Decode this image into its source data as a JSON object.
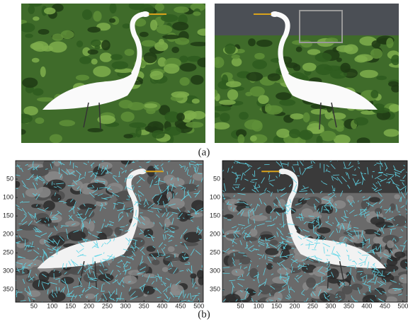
{
  "panels": [
    {
      "label": "(a)"
    },
    {
      "label": "(b)"
    }
  ],
  "chart_data": [
    {
      "type": "image",
      "xlim": [
        0,
        512
      ],
      "ylim": [
        0,
        384
      ],
      "xticks": [
        50,
        100,
        150,
        200,
        250,
        300,
        350,
        400,
        450,
        500
      ],
      "yticks": [
        50,
        100,
        150,
        200,
        250,
        300,
        350
      ]
    },
    {
      "type": "image",
      "xlim": [
        0,
        512
      ],
      "ylim": [
        0,
        384
      ],
      "xticks": [
        50,
        100,
        150,
        200,
        250,
        300,
        350,
        400,
        450,
        500
      ],
      "yticks": [
        50,
        100,
        150,
        200,
        250,
        300,
        350
      ]
    }
  ]
}
